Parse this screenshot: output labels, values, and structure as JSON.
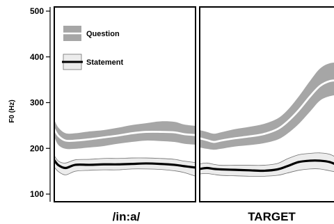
{
  "chart_data": {
    "type": "area",
    "ylabel": "F0 (Hz)",
    "ylim": [
      100,
      500
    ],
    "yticks": [
      100,
      200,
      300,
      400,
      500
    ],
    "legend": {
      "placement": "top-left",
      "entries": [
        "Question",
        "Statement"
      ]
    },
    "colors": {
      "question_band": "#a6a6a6",
      "question_line": "#ffffff",
      "statement_band": "#ececec",
      "statement_line": "#000000",
      "frame": "#000000"
    },
    "panels": [
      {
        "label": "/in:a/",
        "x": [
          0,
          0.03,
          0.08,
          0.15,
          0.25,
          0.35,
          0.45,
          0.55,
          0.65,
          0.75,
          0.85,
          0.92,
          1.0
        ],
        "series": [
          {
            "name": "Question",
            "mean": [
              242,
              227,
              217,
              217,
              220,
              224,
              228,
              233,
              236,
              236,
              235,
              231,
              229
            ],
            "upper": [
              262,
              245,
              233,
              233,
              237,
              240,
              245,
              251,
              255,
              259,
              258,
              252,
              249
            ],
            "lower": [
              225,
              207,
              199,
              199,
              202,
              205,
              210,
              214,
              217,
              216,
              214,
              210,
              208
            ]
          },
          {
            "name": "Statement",
            "mean": [
              174,
              163,
              157,
              164,
              164,
              165,
              165,
              166,
              167,
              166,
              164,
              161,
              158
            ],
            "upper": [
              184,
              172,
              168,
              175,
              176,
              178,
              178,
              179,
              179,
              178,
              176,
              172,
              169
            ],
            "lower": [
              159,
              149,
              142,
              150,
              152,
              153,
              153,
              155,
              155,
              154,
              151,
              147,
              139
            ]
          }
        ]
      },
      {
        "label": "TARGET",
        "x": [
          0,
          0.05,
          0.1,
          0.15,
          0.25,
          0.35,
          0.45,
          0.55,
          0.62,
          0.7,
          0.78,
          0.85,
          0.92,
          1.0
        ],
        "series": [
          {
            "name": "Question",
            "mean": [
              222,
              218,
              214,
              217,
              222,
              226,
              231,
              242,
              258,
              283,
              313,
              336,
              347,
              349
            ],
            "upper": [
              240,
              236,
              232,
              235,
              242,
              247,
              253,
              265,
              283,
              313,
              347,
              374,
              386,
              388
            ],
            "lower": [
              202,
              199,
              197,
              199,
              204,
              207,
              211,
              219,
              232,
              253,
              280,
              304,
              314,
              318
            ]
          },
          {
            "name": "Statement",
            "mean": [
              155,
              157,
              155,
              154,
              153,
              152,
              151,
              154,
              161,
              170,
              173,
              173,
              170,
              160
            ],
            "upper": [
              166,
              168,
              165,
              163,
              163,
              163,
              163,
              167,
              177,
              186,
              189,
              190,
              187,
              175
            ],
            "lower": [
              144,
              145,
              143,
              141,
              140,
              139,
              139,
              141,
              146,
              152,
              155,
              155,
              151,
              146
            ]
          }
        ]
      }
    ]
  }
}
